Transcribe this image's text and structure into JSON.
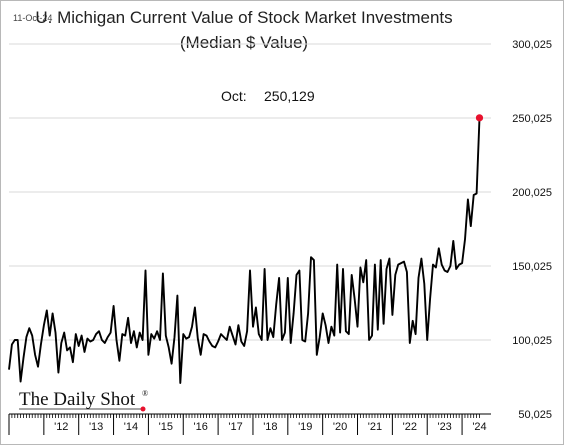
{
  "date_stamp": "11-Oct-24",
  "brand": {
    "name": "The Daily Shot",
    "reg_mark": "®",
    "dot_color": "#e8112d"
  },
  "colors": {
    "line": "#000000",
    "marker": "#e8112d",
    "grid": "#d9d9d9",
    "axis": "#000000"
  },
  "chart_data": {
    "type": "line",
    "title": "U. Michigan Current Value of Stock Market Investments",
    "subtitle": "(Median $ Value)",
    "annotation": {
      "label": "Oct:",
      "value": "250,129"
    },
    "ylim": [
      50025,
      300025
    ],
    "yticks": [
      50025,
      100025,
      150025,
      200025,
      250025,
      300025
    ],
    "ytick_labels": [
      "50,025",
      "100,025",
      "150,025",
      "200,025",
      "250,025",
      "300,025"
    ],
    "xlim": [
      2011.0,
      2024.83
    ],
    "xtick_labels": [
      "'12",
      "'13",
      "'14",
      "'15",
      "'16",
      "'17",
      "'18",
      "'19",
      "'20",
      "'21",
      "'22",
      "'23",
      "'24"
    ],
    "xtick_positions": [
      2012.0,
      2013.0,
      2014.0,
      2015.0,
      2016.0,
      2017.0,
      2018.0,
      2019.0,
      2020.0,
      2021.0,
      2022.0,
      2023.0,
      2024.0
    ],
    "grid": true,
    "x_start": 2011.0,
    "x_step": 0.08333,
    "series": [
      {
        "values": [
          80000,
          97000,
          100000,
          100000,
          72000,
          88000,
          102000,
          108000,
          103000,
          90000,
          82000,
          97000,
          110000,
          120000,
          103000,
          118000,
          105000,
          78000,
          98000,
          105000,
          93000,
          95000,
          85000,
          104000,
          96000,
          103000,
          92000,
          101000,
          99000,
          100000,
          104000,
          106000,
          100000,
          98000,
          102000,
          105000,
          123000,
          100000,
          86000,
          104000,
          103000,
          115000,
          98000,
          106000,
          95000,
          105000,
          100000,
          147000,
          90000,
          104000,
          101000,
          106000,
          100000,
          145000,
          103000,
          95000,
          84000,
          102000,
          130000,
          71000,
          104000,
          101000,
          102000,
          109000,
          122000,
          101000,
          90000,
          104000,
          103000,
          99000,
          96000,
          95000,
          99000,
          104000,
          102000,
          100000,
          109000,
          103000,
          97000,
          110000,
          99000,
          96000,
          106000,
          147000,
          109000,
          122000,
          104000,
          100000,
          148000,
          100000,
          108000,
          102000,
          124000,
          142000,
          100000,
          105000,
          142000,
          98000,
          118000,
          144000,
          147000,
          100000,
          99000,
          118000,
          156000,
          154000,
          90000,
          102000,
          118000,
          110000,
          98000,
          109000,
          103000,
          151000,
          105000,
          148000,
          106000,
          104000,
          144000,
          128000,
          109000,
          149000,
          139000,
          154000,
          100000,
          103000,
          151000,
          107000,
          154000,
          111000,
          148000,
          155000,
          117000,
          144000,
          151000,
          152000,
          153000,
          146000,
          98000,
          113000,
          104000,
          142000,
          155000,
          138000,
          100000,
          128000,
          151000,
          149000,
          162000,
          151000,
          147000,
          146000,
          150000,
          167000,
          148000,
          151000,
          152000,
          168000,
          195000,
          177000,
          198000,
          199000,
          250129
        ]
      }
    ]
  }
}
